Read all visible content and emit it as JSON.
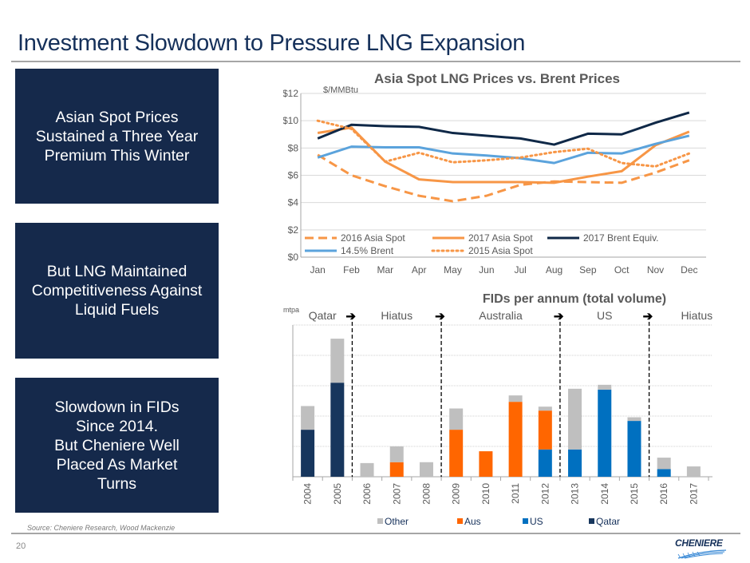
{
  "slide": {
    "title": "Investment Slowdown to Pressure LNG Expansion",
    "boxes": [
      {
        "text": "Asian Spot Prices\nSustained a Three Year\nPremium This Winter"
      },
      {
        "text": "But LNG Maintained\nCompetitiveness Against\nLiquid Fuels"
      },
      {
        "text": "Slowdown in FIDs\nSince 2014.\nBut Cheniere Well\nPlaced As Market\nTurns"
      }
    ],
    "source": "Source: Cheniere Research, Wood Mackenzie",
    "page_number": "20",
    "logo_text": "CHENIERE",
    "colors": {
      "navy": "#15294b",
      "title": "#15305a",
      "orange": "#f79646",
      "aus": "#ff6600",
      "us": "#0070c0",
      "qatar": "#17365d",
      "other": "#bfbfbf",
      "lightblue": "#5ba3dc"
    }
  },
  "chart_data": [
    {
      "type": "line",
      "title": "Asia Spot LNG Prices vs. Brent Prices",
      "ylabel": "$/MMBtu",
      "xlabel": "",
      "ylim": [
        0,
        12
      ],
      "yticks": [
        0,
        2,
        4,
        6,
        8,
        10,
        12
      ],
      "ytick_labels": [
        "$0",
        "$2",
        "$4",
        "$6",
        "$8",
        "$10",
        "$12"
      ],
      "grid": true,
      "legend": "bottom-inside",
      "x": [
        "Jan",
        "Feb",
        "Mar",
        "Apr",
        "May",
        "Jun",
        "Jul",
        "Aug",
        "Sep",
        "Oct",
        "Nov",
        "Dec"
      ],
      "series": [
        {
          "name": "2016 Asia Spot",
          "style": "dashed",
          "color": "#f79646",
          "values": [
            7.5,
            6.0,
            5.2,
            4.5,
            4.1,
            4.5,
            5.3,
            5.55,
            5.5,
            5.45,
            6.2,
            7.1
          ]
        },
        {
          "name": "2017 Asia Spot",
          "style": "solid",
          "color": "#f79646",
          "values": [
            9.1,
            9.5,
            7.0,
            5.7,
            5.5,
            5.5,
            5.5,
            5.45,
            5.9,
            6.3,
            8.2,
            9.2
          ]
        },
        {
          "name": "2017 Brent Equiv.",
          "style": "solid",
          "color": "#0f2847",
          "values": [
            8.7,
            9.7,
            9.6,
            9.55,
            9.1,
            8.9,
            8.7,
            8.25,
            9.05,
            9.0,
            9.85,
            10.6
          ]
        },
        {
          "name": "14.5% Brent",
          "style": "solid",
          "color": "#5ba3dc",
          "values": [
            7.3,
            8.1,
            8.05,
            8.05,
            7.6,
            7.45,
            7.25,
            6.9,
            7.65,
            7.6,
            8.3,
            8.9
          ]
        },
        {
          "name": "2015 Asia Spot",
          "style": "dotted",
          "color": "#f79646",
          "values": [
            10.0,
            9.4,
            7.0,
            7.65,
            6.95,
            7.1,
            7.3,
            7.7,
            7.95,
            6.9,
            6.65,
            7.6
          ]
        }
      ]
    },
    {
      "type": "bar",
      "stacked": true,
      "title": "FIDs per annum (total volume)",
      "ylabel": "mtpa",
      "xlabel": "",
      "ylim": [
        0,
        50
      ],
      "yticks": [
        0,
        10,
        20,
        30,
        40,
        50
      ],
      "grid": true,
      "legend": "bottom",
      "categories": [
        "2004",
        "2005",
        "2006",
        "2007",
        "2008",
        "2009",
        "2010",
        "2011",
        "2012",
        "2013",
        "2014",
        "2015",
        "2016",
        "2017"
      ],
      "series": [
        {
          "name": "Qatar",
          "color": "#17365d",
          "values": [
            15.5,
            31.0,
            0,
            0,
            0,
            0,
            0,
            0,
            0,
            0,
            0,
            0,
            0,
            0
          ]
        },
        {
          "name": "US",
          "color": "#0070c0",
          "values": [
            0,
            0,
            0,
            0,
            0,
            0,
            0,
            0,
            9.0,
            9.0,
            28.7,
            18.4,
            2.5,
            0
          ]
        },
        {
          "name": "Aus",
          "color": "#ff6600",
          "values": [
            0,
            0,
            0,
            4.8,
            0,
            15.5,
            8.4,
            24.7,
            12.8,
            0,
            0,
            0,
            0,
            0
          ]
        },
        {
          "name": "Other",
          "color": "#bfbfbf",
          "values": [
            7.8,
            14.5,
            4.5,
            5.2,
            4.8,
            7.0,
            0,
            2.1,
            1.3,
            20.0,
            1.6,
            1.2,
            3.8,
            3.4
          ]
        }
      ],
      "legend_order": [
        "Other",
        "Aus",
        "US",
        "Qatar"
      ],
      "annotations": {
        "eras": [
          "Qatar",
          "Hiatus",
          "Australia",
          "US",
          "Hiatus"
        ],
        "dividers_after": [
          "2005",
          "2008",
          "2012",
          "2015"
        ]
      }
    }
  ]
}
